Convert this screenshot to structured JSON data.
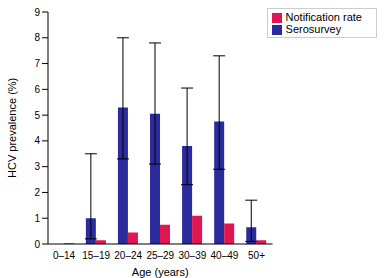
{
  "chart_data": {
    "type": "bar",
    "xlabel": "Age (years)",
    "ylabel": "HCV prevalence (%)",
    "categories": [
      "0–14",
      "15–19",
      "20–24",
      "25–29",
      "30–39",
      "40–49",
      "50+"
    ],
    "series": [
      {
        "name": "Serosurvey",
        "color": "#2b2b9e",
        "values": [
          0,
          1.0,
          5.3,
          5.05,
          3.8,
          4.75,
          0.65
        ],
        "error": [
          null,
          [
            0.2,
            3.5
          ],
          [
            3.3,
            8.0
          ],
          [
            3.1,
            7.8
          ],
          [
            2.3,
            6.05
          ],
          [
            2.9,
            7.3
          ],
          [
            0.1,
            1.7
          ]
        ]
      },
      {
        "name": "Notification rate",
        "color": "#e01650",
        "values": [
          0.03,
          0.15,
          0.45,
          0.75,
          1.1,
          0.8,
          0.15
        ]
      }
    ],
    "ylim": [
      0,
      9
    ],
    "yticks": [
      0,
      1,
      2,
      3,
      4,
      5,
      6,
      7,
      8,
      9
    ],
    "grid": false,
    "legend": "upper right"
  }
}
